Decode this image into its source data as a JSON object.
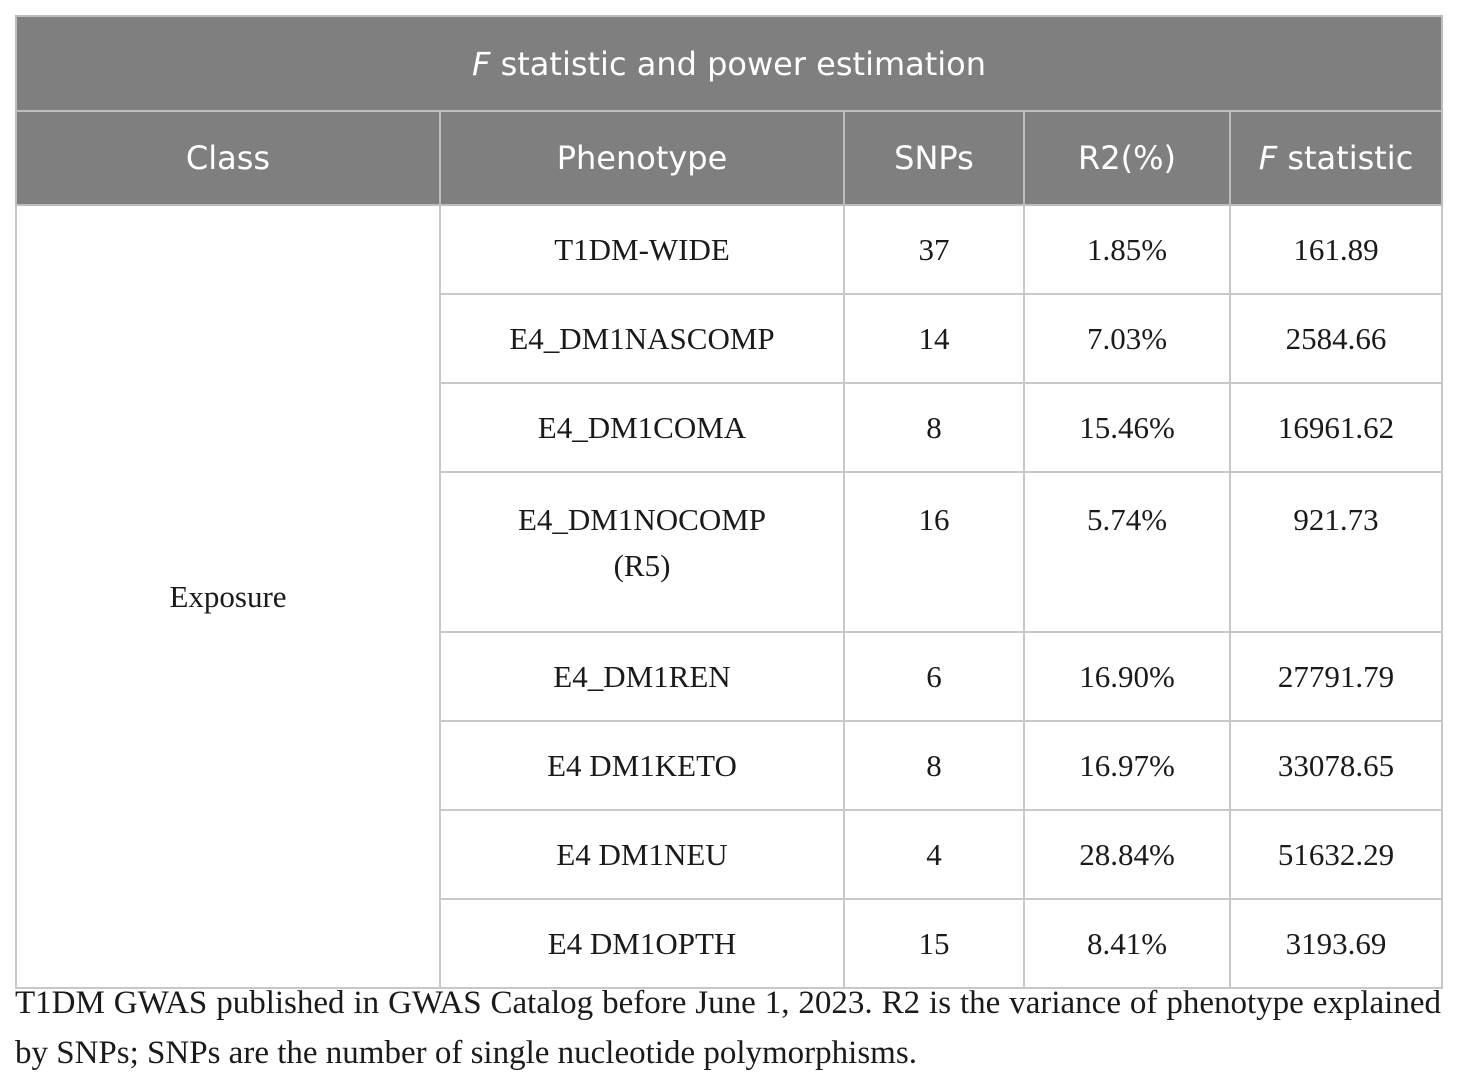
{
  "table": {
    "title_italic": "F",
    "title_rest": " statistic and power estimation",
    "headers": {
      "class": "Class",
      "phenotype": "Phenotype",
      "snps": "SNPs",
      "r2": "R2(%)",
      "f_italic": "F",
      "f_rest": " statistic"
    },
    "class_label": "Exposure",
    "rows": [
      {
        "phenotype": "T1DM-WIDE",
        "phenotype_line2": "",
        "snps": "37",
        "r2": "1.85%",
        "f": "161.89"
      },
      {
        "phenotype": "E4_DM1NASCOMP",
        "phenotype_line2": "",
        "snps": "14",
        "r2": "7.03%",
        "f": "2584.66"
      },
      {
        "phenotype": "E4_DM1COMA",
        "phenotype_line2": "",
        "snps": "8",
        "r2": "15.46%",
        "f": "16961.62"
      },
      {
        "phenotype": "E4_DM1NOCOMP",
        "phenotype_line2": "(R5)",
        "snps": "16",
        "r2": "5.74%",
        "f": "921.73"
      },
      {
        "phenotype": "E4_DM1REN",
        "phenotype_line2": "",
        "snps": "6",
        "r2": "16.90%",
        "f": "27791.79"
      },
      {
        "phenotype": "E4 DM1KETO",
        "phenotype_line2": "",
        "snps": "8",
        "r2": "16.97%",
        "f": "33078.65"
      },
      {
        "phenotype": "E4 DM1NEU",
        "phenotype_line2": "",
        "snps": "4",
        "r2": "28.84%",
        "f": "51632.29"
      },
      {
        "phenotype": "E4 DM1OPTH",
        "phenotype_line2": "",
        "snps": "15",
        "r2": "8.41%",
        "f": "3193.69"
      }
    ]
  },
  "footnote": "T1DM GWAS published in GWAS Catalog before June 1, 2023. R2 is the variance of phenotype explained by SNPs; SNPs are the number of single nucleotide polymorphisms."
}
